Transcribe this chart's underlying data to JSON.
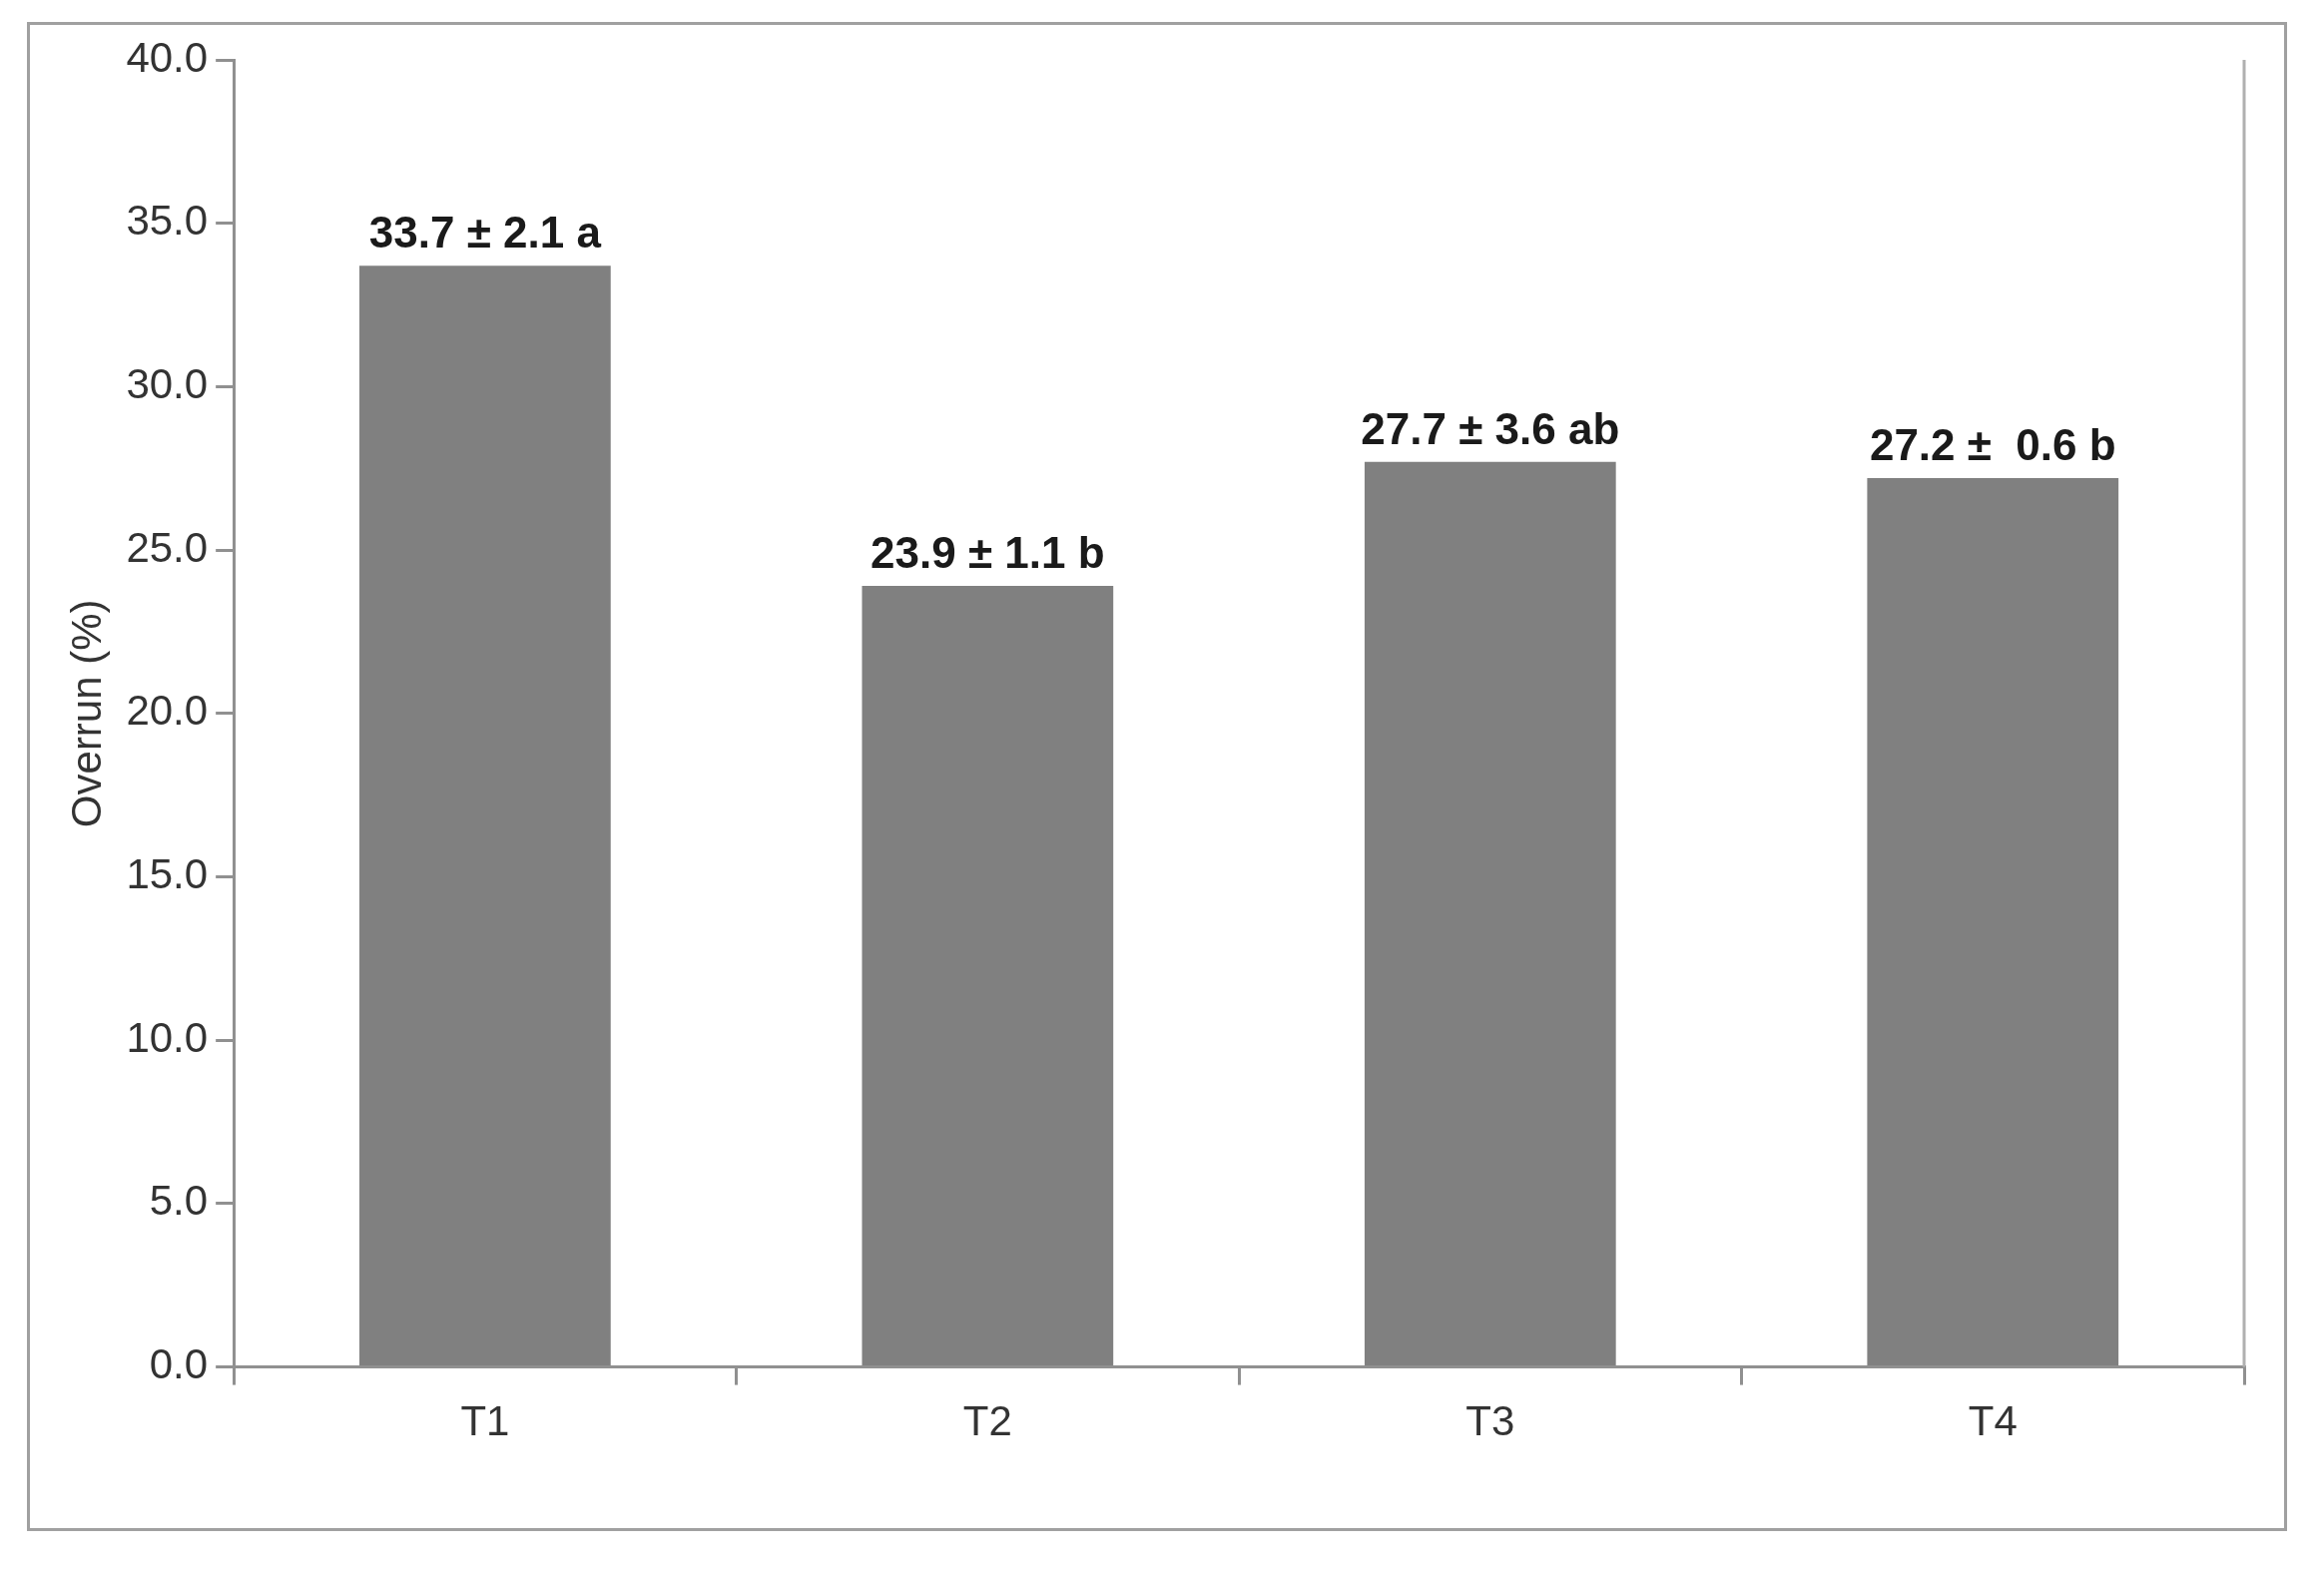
{
  "chart_data": {
    "type": "bar",
    "ylabel": "Overrun (%)",
    "categories": [
      "T1",
      "T2",
      "T3",
      "T4"
    ],
    "values": [
      33.7,
      23.9,
      27.7,
      27.2
    ],
    "value_labels": [
      "33.7 ± 2.1 a",
      "23.9 ± 1.1 b",
      "27.7 ± 3.6 ab",
      "27.2 ±  0.6 b"
    ],
    "color": "#808080",
    "ylim": [
      0,
      40
    ],
    "yticks": [
      {
        "value": 0,
        "label": "0.0"
      },
      {
        "value": 5,
        "label": "5.0"
      },
      {
        "value": 10,
        "label": "10.0"
      },
      {
        "value": 15,
        "label": "15.0"
      },
      {
        "value": 20,
        "label": "20.0"
      },
      {
        "value": 25,
        "label": "25.0"
      },
      {
        "value": 30,
        "label": "30.0"
      },
      {
        "value": 35,
        "label": "35.0"
      },
      {
        "value": 40,
        "label": "40.0"
      }
    ]
  }
}
